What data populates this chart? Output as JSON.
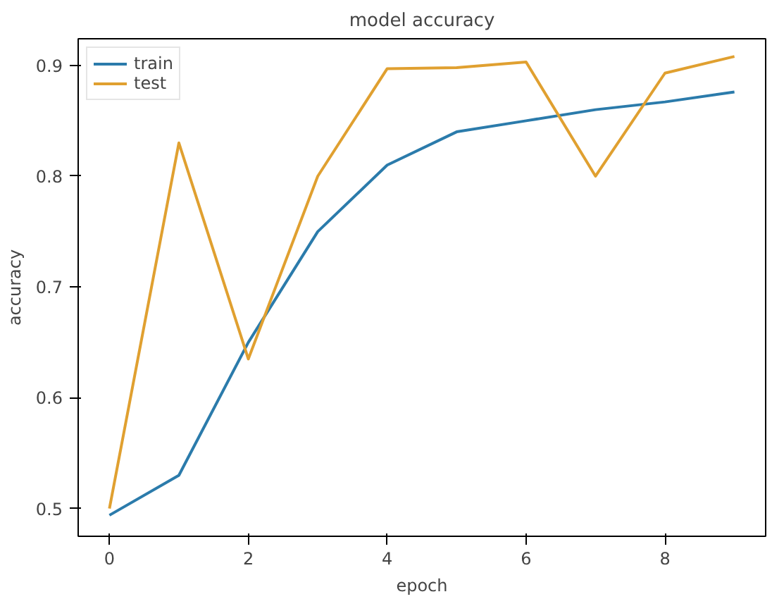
{
  "chart_data": {
    "type": "line",
    "title": "model accuracy",
    "xlabel": "epoch",
    "ylabel": "accuracy",
    "x": [
      0,
      1,
      2,
      3,
      4,
      5,
      6,
      7,
      8,
      9
    ],
    "series": [
      {
        "name": "train",
        "color": "#2b7bab",
        "values": [
          0.494,
          0.53,
          0.65,
          0.75,
          0.81,
          0.84,
          0.85,
          0.86,
          0.867,
          0.876
        ]
      },
      {
        "name": "test",
        "color": "#e0a030",
        "values": [
          0.5,
          0.83,
          0.635,
          0.8,
          0.897,
          0.898,
          0.903,
          0.8,
          0.893,
          0.908
        ]
      }
    ],
    "xlim": [
      -0.45,
      9.45
    ],
    "ylim": [
      0.475,
      0.924
    ],
    "xticks": [
      0,
      2,
      4,
      6,
      8
    ],
    "yticks": [
      0.5,
      0.6,
      0.7,
      0.8,
      0.9
    ],
    "legend": "top left",
    "grid": false,
    "marker": "none",
    "line_style": "solid"
  }
}
